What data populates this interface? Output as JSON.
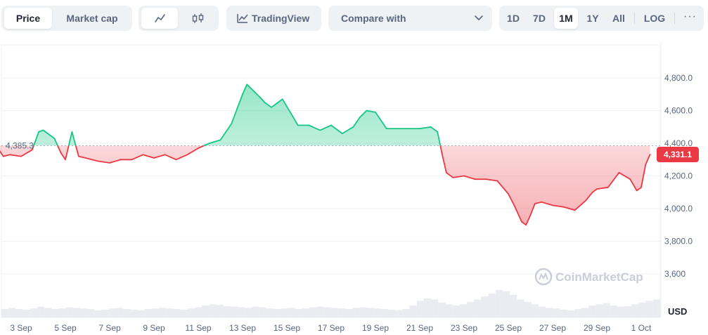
{
  "toolbar": {
    "view_tabs": [
      "Price",
      "Market cap"
    ],
    "tradingview_label": "TradingView",
    "compare_label": "Compare with",
    "ranges": [
      "1D",
      "7D",
      "1M",
      "1Y",
      "All"
    ],
    "log_label": "LOG",
    "more_label": "···"
  },
  "colors": {
    "up": "#16c784",
    "down": "#ea3943",
    "ref_line": "#a1a7bb",
    "accent_badge": "#ea3943"
  },
  "chart_data": {
    "type": "area",
    "currency": "USD",
    "x_ticks": [
      "3 Sep",
      "5 Sep",
      "7 Sep",
      "9 Sep",
      "11 Sep",
      "13 Sep",
      "15 Sep",
      "17 Sep",
      "19 Sep",
      "21 Sep",
      "23 Sep",
      "25 Sep",
      "27 Sep",
      "29 Sep",
      "1 Oct"
    ],
    "y_ticks": [
      "4,800.0",
      "4,600.0",
      "4,400.0",
      "4,200.0",
      "4,000.0",
      "3,800.0",
      "3,600"
    ],
    "ylim": [
      3500,
      4900
    ],
    "reference_value": 4385.3,
    "reference_label": "4,385.3",
    "last_value": 4331.1,
    "last_label": "4,331.1",
    "watermark": "CoinMarketCap",
    "volume_label": "USD",
    "series": [
      {
        "x": [
          1.9,
          2.2,
          2.5,
          3,
          3.5,
          3.8,
          4,
          4.5,
          4.8,
          5,
          5.3,
          5.6,
          5.9,
          6.2,
          6.5,
          7,
          7.5,
          8,
          8.5,
          9,
          9.5,
          10,
          10.5,
          11,
          11.5,
          12,
          12.5,
          13,
          13.2,
          13.5,
          13.8,
          14,
          14.3,
          14.6,
          14.8,
          15.2,
          15.5,
          16,
          16.5,
          17,
          17.5,
          18,
          18.3,
          18.6,
          19,
          19.5,
          20,
          20.5,
          21,
          21.5,
          21.8,
          22,
          22.2,
          22.5,
          23,
          23.5,
          24,
          24.5,
          25,
          25.3,
          25.6,
          25.8,
          26,
          26.2,
          26.5,
          27,
          27.5,
          28,
          28.5,
          28.8,
          29,
          29.5,
          30,
          30.5,
          30.8,
          31,
          31.2,
          31.4
        ],
        "y": [
          4380,
          4320,
          4330,
          4320,
          4360,
          4470,
          4480,
          4430,
          4340,
          4300,
          4470,
          4320,
          4310,
          4300,
          4290,
          4280,
          4300,
          4300,
          4330,
          4310,
          4330,
          4300,
          4330,
          4370,
          4400,
          4420,
          4520,
          4700,
          4760,
          4720,
          4680,
          4650,
          4620,
          4650,
          4670,
          4580,
          4510,
          4510,
          4480,
          4510,
          4460,
          4500,
          4560,
          4600,
          4590,
          4490,
          4490,
          4490,
          4490,
          4500,
          4470,
          4340,
          4220,
          4190,
          4200,
          4180,
          4180,
          4170,
          4090,
          4010,
          3920,
          3900,
          3960,
          4030,
          4040,
          4020,
          4010,
          3990,
          4050,
          4100,
          4120,
          4130,
          4220,
          4180,
          4110,
          4130,
          4270,
          4331.1
        ]
      }
    ],
    "volume": [
      14,
      16,
      14,
      13,
      15,
      18,
      16,
      14,
      15,
      17,
      16,
      15,
      14,
      12,
      13,
      15,
      16,
      14,
      13,
      12,
      14,
      15,
      16,
      15,
      14,
      13,
      15,
      17,
      20,
      22,
      21,
      19,
      18,
      17,
      16,
      18,
      17,
      15,
      14,
      15,
      16,
      14,
      15,
      17,
      18,
      17,
      16,
      15,
      14,
      16,
      17,
      16,
      15,
      14,
      13,
      12,
      14,
      20,
      28,
      32,
      30,
      25,
      22,
      20,
      22,
      26,
      30,
      35,
      40,
      46,
      44,
      38,
      30,
      26,
      22,
      18,
      16,
      15,
      13,
      12,
      14,
      16,
      20,
      22,
      24,
      20,
      18,
      19,
      22,
      25,
      28,
      30
    ]
  }
}
